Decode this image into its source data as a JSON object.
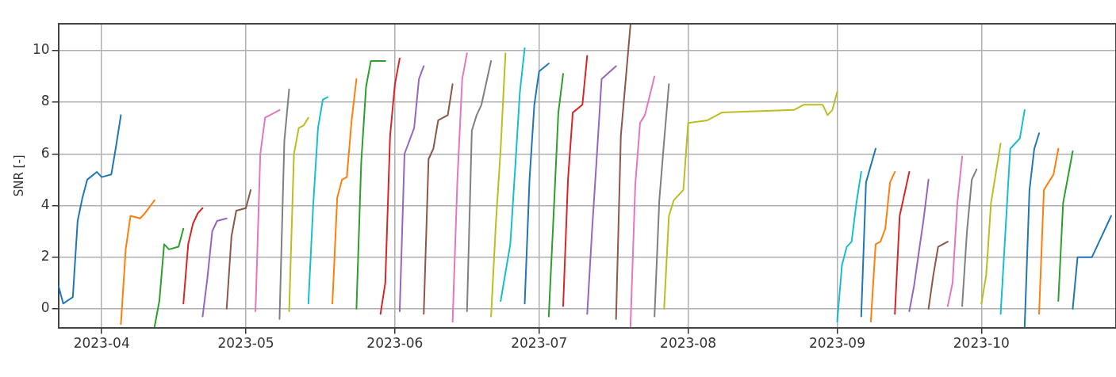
{
  "chart_data": {
    "type": "line",
    "ylabel": "SNR [-]",
    "xlim": [
      "2023-03-23",
      "2023-10-29"
    ],
    "ylim": [
      -0.73,
      11.04
    ],
    "xticks": [
      {
        "value": "2023-04-01",
        "label": "2023-04"
      },
      {
        "value": "2023-05-01",
        "label": "2023-05"
      },
      {
        "value": "2023-06-01",
        "label": "2023-06"
      },
      {
        "value": "2023-07-01",
        "label": "2023-07"
      },
      {
        "value": "2023-08-01",
        "label": "2023-08"
      },
      {
        "value": "2023-09-01",
        "label": "2023-09"
      },
      {
        "value": "2023-10-01",
        "label": "2023-10"
      }
    ],
    "yticks": [
      0,
      2,
      4,
      6,
      8,
      10
    ],
    "grid": true,
    "legend": false,
    "marker": "none",
    "line_style": "solid",
    "series": [
      {
        "color": "#1f77b4",
        "x": [
          "2023-03-23",
          "2023-03-24",
          "2023-03-26",
          "2023-03-27",
          "2023-03-28",
          "2023-03-29",
          "2023-03-31",
          "2023-04-01",
          "2023-04-03",
          "2023-04-04",
          "2023-04-05"
        ],
        "values": [
          0.9,
          0.2,
          0.45,
          3.4,
          4.3,
          5.0,
          5.3,
          5.1,
          5.2,
          6.3,
          7.5
        ]
      },
      {
        "color": "#ff7f0e",
        "x": [
          "2023-04-05",
          "2023-04-06",
          "2023-04-07",
          "2023-04-09",
          "2023-04-10",
          "2023-04-12"
        ],
        "values": [
          -0.6,
          2.3,
          3.6,
          3.5,
          3.7,
          4.2
        ]
      },
      {
        "color": "#2ca02c",
        "x": [
          "2023-04-12",
          "2023-04-13",
          "2023-04-14",
          "2023-04-15",
          "2023-04-17",
          "2023-04-18"
        ],
        "values": [
          -0.7,
          0.3,
          2.5,
          2.3,
          2.4,
          3.1
        ]
      },
      {
        "color": "#d62728",
        "x": [
          "2023-04-18",
          "2023-04-19",
          "2023-04-20",
          "2023-04-21",
          "2023-04-22"
        ],
        "values": [
          0.2,
          2.5,
          3.3,
          3.7,
          3.9
        ]
      },
      {
        "color": "#9467bd",
        "x": [
          "2023-04-22",
          "2023-04-23",
          "2023-04-24",
          "2023-04-25",
          "2023-04-27"
        ],
        "values": [
          -0.3,
          1.2,
          3.0,
          3.4,
          3.5
        ]
      },
      {
        "color": "#8c564b",
        "x": [
          "2023-04-27",
          "2023-04-28",
          "2023-04-29",
          "2023-05-01",
          "2023-05-02"
        ],
        "values": [
          0.0,
          2.8,
          3.8,
          3.9,
          4.6
        ]
      },
      {
        "color": "#e377c2",
        "x": [
          "2023-05-03",
          "2023-05-04",
          "2023-05-05",
          "2023-05-08"
        ],
        "values": [
          -0.1,
          6.0,
          7.4,
          7.7
        ]
      },
      {
        "color": "#7f7f7f",
        "x": [
          "2023-05-08",
          "2023-05-09",
          "2023-05-10"
        ],
        "values": [
          -0.4,
          6.5,
          8.5
        ]
      },
      {
        "color": "#bcbd22",
        "x": [
          "2023-05-10",
          "2023-05-11",
          "2023-05-12",
          "2023-05-13",
          "2023-05-14"
        ],
        "values": [
          -0.1,
          6.0,
          7.0,
          7.1,
          7.4
        ]
      },
      {
        "color": "#17becf",
        "x": [
          "2023-05-14",
          "2023-05-15",
          "2023-05-16",
          "2023-05-17",
          "2023-05-18"
        ],
        "values": [
          0.2,
          4.0,
          7.0,
          8.1,
          8.2
        ]
      },
      {
        "color": "#ff7f0e",
        "x": [
          "2023-05-19",
          "2023-05-20",
          "2023-05-21",
          "2023-05-22",
          "2023-05-23",
          "2023-05-24"
        ],
        "values": [
          0.2,
          4.3,
          5.0,
          5.1,
          7.3,
          8.9
        ]
      },
      {
        "color": "#2ca02c",
        "x": [
          "2023-05-24",
          "2023-05-25",
          "2023-05-26",
          "2023-05-27",
          "2023-05-30"
        ],
        "values": [
          0.0,
          5.7,
          8.6,
          9.6,
          9.6
        ]
      },
      {
        "color": "#d62728",
        "x": [
          "2023-05-29",
          "2023-05-30",
          "2023-05-31",
          "2023-06-01",
          "2023-06-02"
        ],
        "values": [
          -0.2,
          1.0,
          6.7,
          8.7,
          9.7
        ]
      },
      {
        "color": "#9467bd",
        "x": [
          "2023-06-02",
          "2023-06-03",
          "2023-06-05",
          "2023-06-06",
          "2023-06-07"
        ],
        "values": [
          -0.1,
          6.0,
          7.0,
          8.9,
          9.4
        ]
      },
      {
        "color": "#8c564b",
        "x": [
          "2023-06-07",
          "2023-06-08",
          "2023-06-09",
          "2023-06-10",
          "2023-06-12",
          "2023-06-13"
        ],
        "values": [
          -0.2,
          5.8,
          6.2,
          7.3,
          7.5,
          8.7
        ]
      },
      {
        "color": "#e377c2",
        "x": [
          "2023-06-13",
          "2023-06-14",
          "2023-06-15",
          "2023-06-16"
        ],
        "values": [
          -0.5,
          5.0,
          8.9,
          9.9
        ]
      },
      {
        "color": "#7f7f7f",
        "x": [
          "2023-06-16",
          "2023-06-17",
          "2023-06-18",
          "2023-06-19",
          "2023-06-21"
        ],
        "values": [
          -0.1,
          6.9,
          7.5,
          7.9,
          9.6
        ]
      },
      {
        "color": "#bcbd22",
        "x": [
          "2023-06-21",
          "2023-06-22",
          "2023-06-23",
          "2023-06-24"
        ],
        "values": [
          -0.3,
          3.3,
          6.2,
          9.9
        ]
      },
      {
        "color": "#17becf",
        "x": [
          "2023-06-23",
          "2023-06-25",
          "2023-06-26",
          "2023-06-27",
          "2023-06-28"
        ],
        "values": [
          0.3,
          2.5,
          5.4,
          8.4,
          10.1
        ]
      },
      {
        "color": "#1f77b4",
        "x": [
          "2023-06-28",
          "2023-06-29",
          "2023-06-30",
          "2023-07-01",
          "2023-07-03"
        ],
        "values": [
          0.2,
          5.0,
          7.9,
          9.2,
          9.5
        ]
      },
      {
        "color": "#2ca02c",
        "x": [
          "2023-07-03",
          "2023-07-04",
          "2023-07-05",
          "2023-07-06"
        ],
        "values": [
          -0.3,
          3.6,
          7.6,
          9.1
        ]
      },
      {
        "color": "#d62728",
        "x": [
          "2023-07-06",
          "2023-07-07",
          "2023-07-08",
          "2023-07-10",
          "2023-07-11"
        ],
        "values": [
          0.1,
          5.0,
          7.6,
          7.9,
          9.8
        ]
      },
      {
        "color": "#9467bd",
        "x": [
          "2023-07-11",
          "2023-07-12",
          "2023-07-13",
          "2023-07-14",
          "2023-07-17"
        ],
        "values": [
          -0.2,
          3.0,
          5.9,
          8.9,
          9.4
        ]
      },
      {
        "color": "#8c564b",
        "x": [
          "2023-07-17",
          "2023-07-18",
          "2023-07-20"
        ],
        "values": [
          -0.4,
          6.7,
          11.0
        ]
      },
      {
        "color": "#e377c2",
        "x": [
          "2023-07-20",
          "2023-07-21",
          "2023-07-22",
          "2023-07-23",
          "2023-07-25"
        ],
        "values": [
          -0.7,
          4.8,
          7.2,
          7.5,
          9.0
        ]
      },
      {
        "color": "#7f7f7f",
        "x": [
          "2023-07-25",
          "2023-07-26",
          "2023-07-27",
          "2023-07-28"
        ],
        "values": [
          -0.3,
          4.2,
          6.5,
          8.7
        ]
      },
      {
        "color": "#bcbd22",
        "x": [
          "2023-07-27",
          "2023-07-28",
          "2023-07-29",
          "2023-07-31",
          "2023-08-01",
          "2023-08-05",
          "2023-08-08",
          "2023-08-23",
          "2023-08-25",
          "2023-08-29",
          "2023-08-30",
          "2023-08-31",
          "2023-09-01"
        ],
        "values": [
          0.0,
          3.6,
          4.2,
          4.6,
          7.2,
          7.3,
          7.6,
          7.7,
          7.9,
          7.9,
          7.5,
          7.7,
          8.4
        ]
      },
      {
        "color": "#17becf",
        "x": [
          "2023-09-01",
          "2023-09-02",
          "2023-09-03",
          "2023-09-04",
          "2023-09-05",
          "2023-09-06"
        ],
        "values": [
          -0.5,
          1.7,
          2.4,
          2.6,
          4.1,
          5.3
        ]
      },
      {
        "color": "#1f77b4",
        "x": [
          "2023-09-06",
          "2023-09-07",
          "2023-09-09"
        ],
        "values": [
          -0.3,
          4.9,
          6.2
        ]
      },
      {
        "color": "#ff7f0e",
        "x": [
          "2023-09-08",
          "2023-09-09",
          "2023-09-10",
          "2023-09-11",
          "2023-09-12",
          "2023-09-13"
        ],
        "values": [
          -0.5,
          2.5,
          2.6,
          3.1,
          4.9,
          5.3
        ]
      },
      {
        "color": "#d62728",
        "x": [
          "2023-09-13",
          "2023-09-14",
          "2023-09-16"
        ],
        "values": [
          -0.2,
          3.6,
          5.3
        ]
      },
      {
        "color": "#9467bd",
        "x": [
          "2023-09-16",
          "2023-09-17",
          "2023-09-19",
          "2023-09-20"
        ],
        "values": [
          -0.1,
          0.9,
          3.5,
          5.0
        ]
      },
      {
        "color": "#8c564b",
        "x": [
          "2023-09-20",
          "2023-09-21",
          "2023-09-22",
          "2023-09-24"
        ],
        "values": [
          0.0,
          1.3,
          2.4,
          2.6
        ]
      },
      {
        "color": "#e377c2",
        "x": [
          "2023-09-24",
          "2023-09-25",
          "2023-09-26",
          "2023-09-27"
        ],
        "values": [
          0.1,
          1.0,
          4.1,
          5.9
        ]
      },
      {
        "color": "#7f7f7f",
        "x": [
          "2023-09-27",
          "2023-09-28",
          "2023-09-29",
          "2023-09-30"
        ],
        "values": [
          0.1,
          3.0,
          5.0,
          5.4
        ]
      },
      {
        "color": "#bcbd22",
        "x": [
          "2023-10-01",
          "2023-10-02",
          "2023-10-03",
          "2023-10-05"
        ],
        "values": [
          0.2,
          1.3,
          4.1,
          6.4
        ]
      },
      {
        "color": "#17becf",
        "x": [
          "2023-10-05",
          "2023-10-07",
          "2023-10-09",
          "2023-10-10"
        ],
        "values": [
          -0.2,
          6.2,
          6.6,
          7.7
        ]
      },
      {
        "color": "#1f77b4",
        "x": [
          "2023-10-10",
          "2023-10-11",
          "2023-10-12",
          "2023-10-13"
        ],
        "values": [
          -0.7,
          4.6,
          6.2,
          6.8
        ]
      },
      {
        "color": "#ff7f0e",
        "x": [
          "2023-10-13",
          "2023-10-14",
          "2023-10-16",
          "2023-10-17"
        ],
        "values": [
          -0.2,
          4.6,
          5.2,
          6.2
        ]
      },
      {
        "color": "#2ca02c",
        "x": [
          "2023-10-17",
          "2023-10-18",
          "2023-10-20"
        ],
        "values": [
          0.3,
          4.1,
          6.1
        ]
      },
      {
        "color": "#1f77b4",
        "x": [
          "2023-10-20",
          "2023-10-21",
          "2023-10-24",
          "2023-10-26",
          "2023-10-28"
        ],
        "values": [
          0.0,
          2.0,
          2.0,
          2.8,
          3.6
        ]
      }
    ]
  }
}
